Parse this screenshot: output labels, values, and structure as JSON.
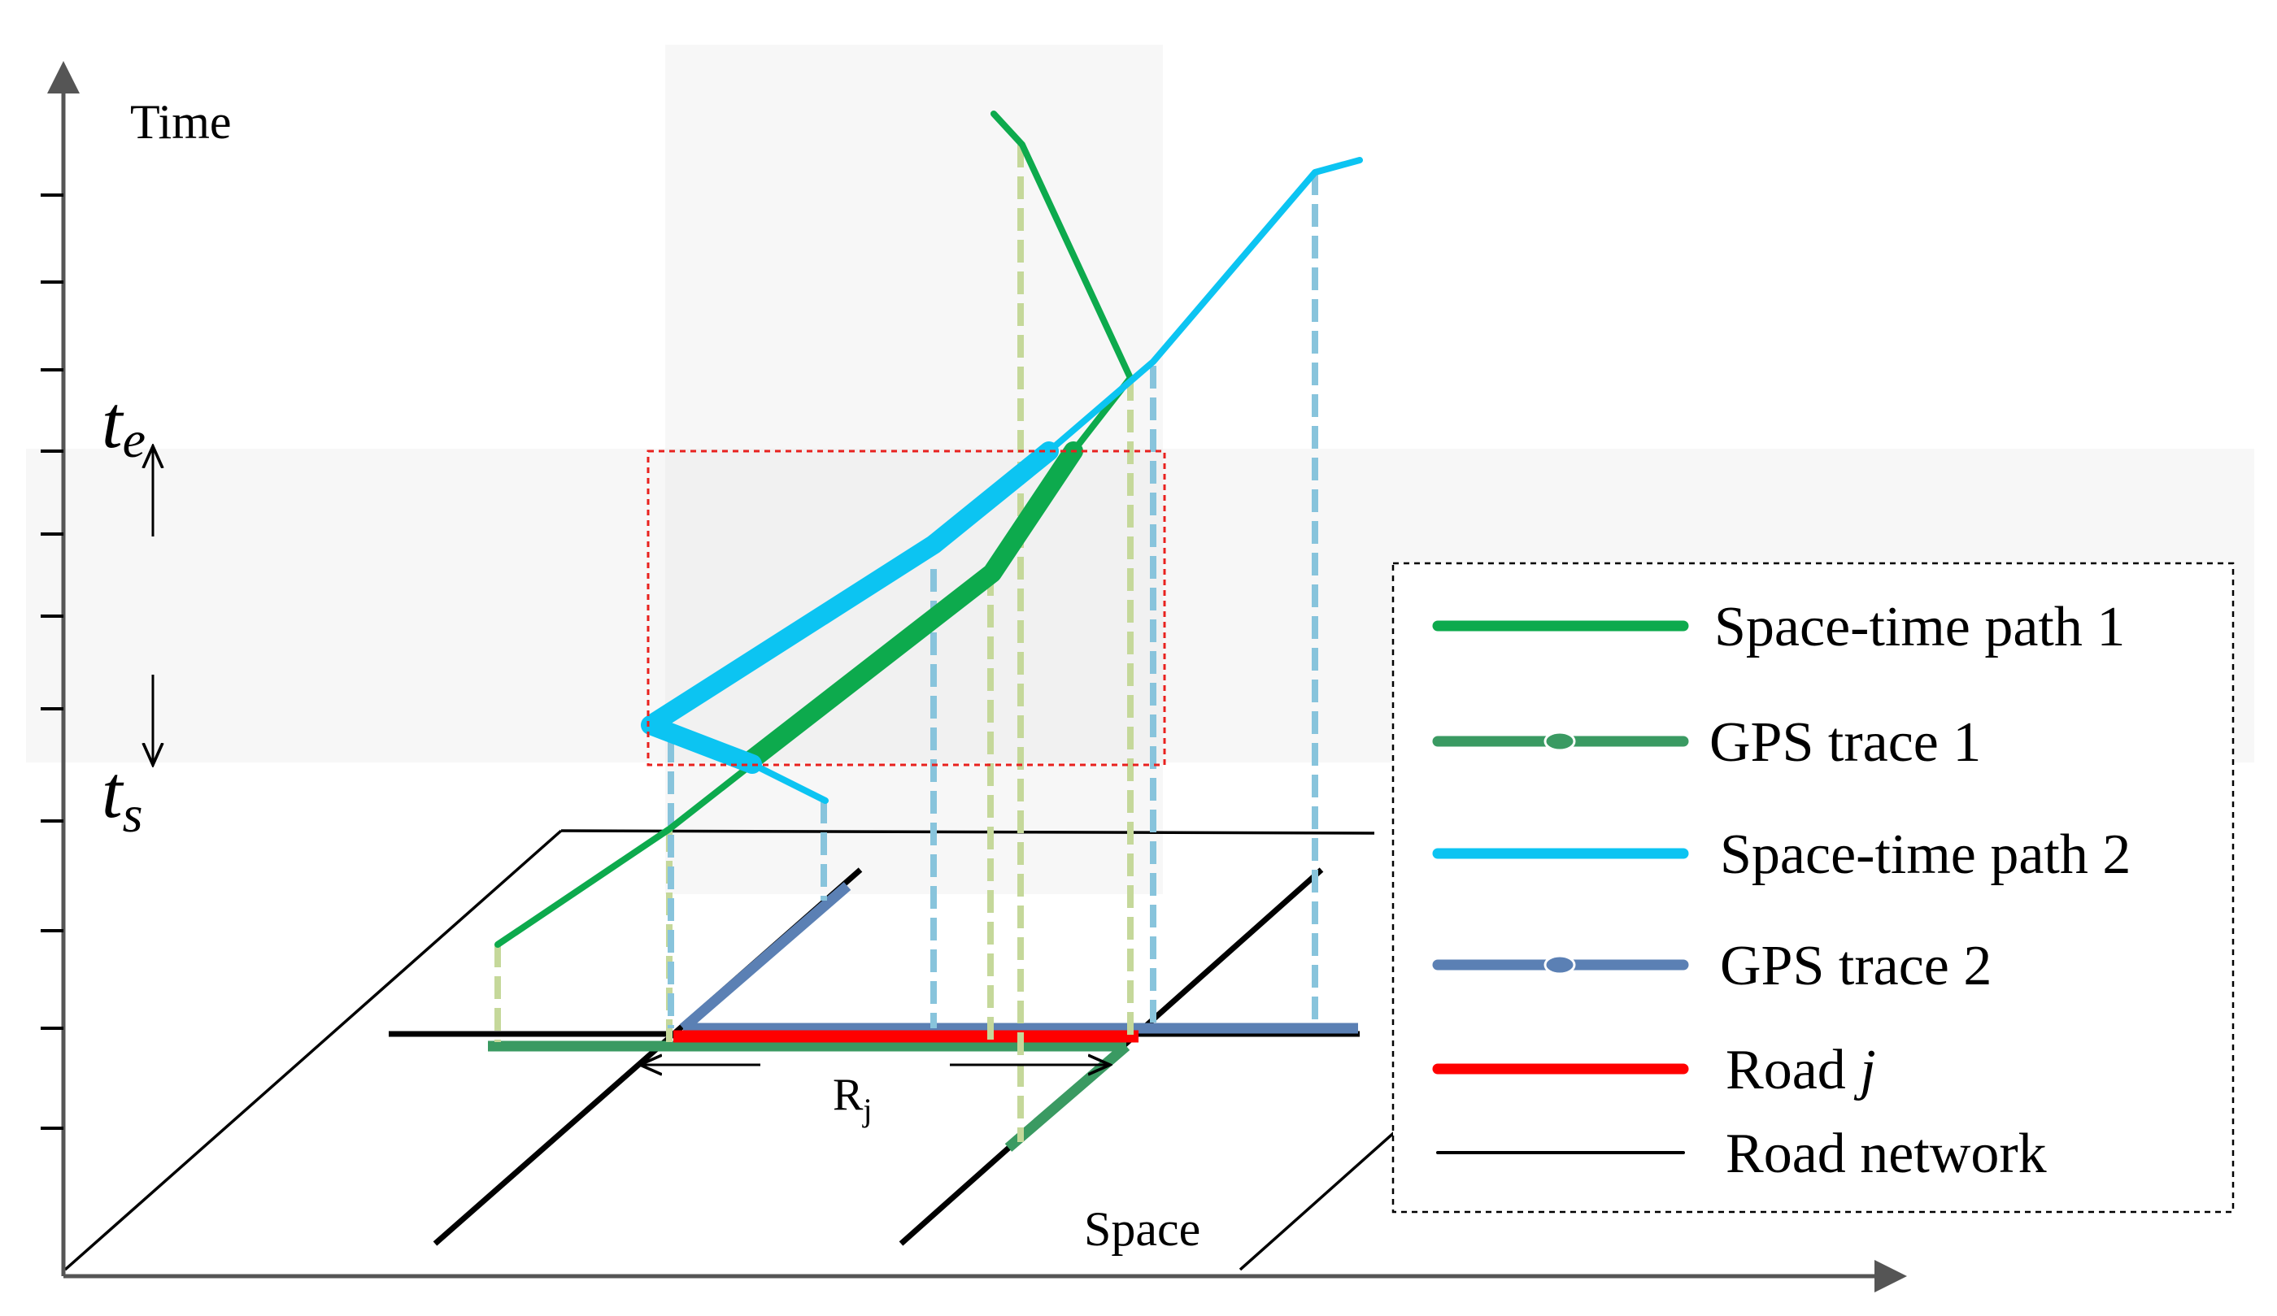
{
  "axes": {
    "y_label": "Time",
    "x_label": "Space"
  },
  "time_window": {
    "end_label": "t",
    "end_sub": "e",
    "start_label": "t",
    "start_sub": "s"
  },
  "road_label": {
    "main": "R",
    "sub": "j"
  },
  "legend": {
    "items": [
      {
        "label": "Space-time path 1",
        "color": "#0DAA4D",
        "style": "line"
      },
      {
        "label": "GPS trace 1",
        "color": "#3A9A62",
        "style": "trace"
      },
      {
        "label": "Space-time path 2",
        "color": "#0CC4F2",
        "style": "line"
      },
      {
        "label": "GPS trace 2",
        "color": "#5B80B4",
        "style": "trace"
      },
      {
        "label": "Road ",
        "italic_suffix": "j",
        "color": "#FF0000",
        "style": "line"
      },
      {
        "label": "Road network",
        "color": "#000000",
        "style": "thin"
      }
    ]
  },
  "colors": {
    "path1": "#0DAA4D",
    "gps1": "#3A9A62",
    "path2": "#0CC4F2",
    "gps2": "#5B80B4",
    "road_j": "#FF0000",
    "road_network": "#000000",
    "proj1": "#C5D89A",
    "proj2": "#88C4DC",
    "band": "#F7F7F7",
    "window_box": "#E8211E"
  }
}
